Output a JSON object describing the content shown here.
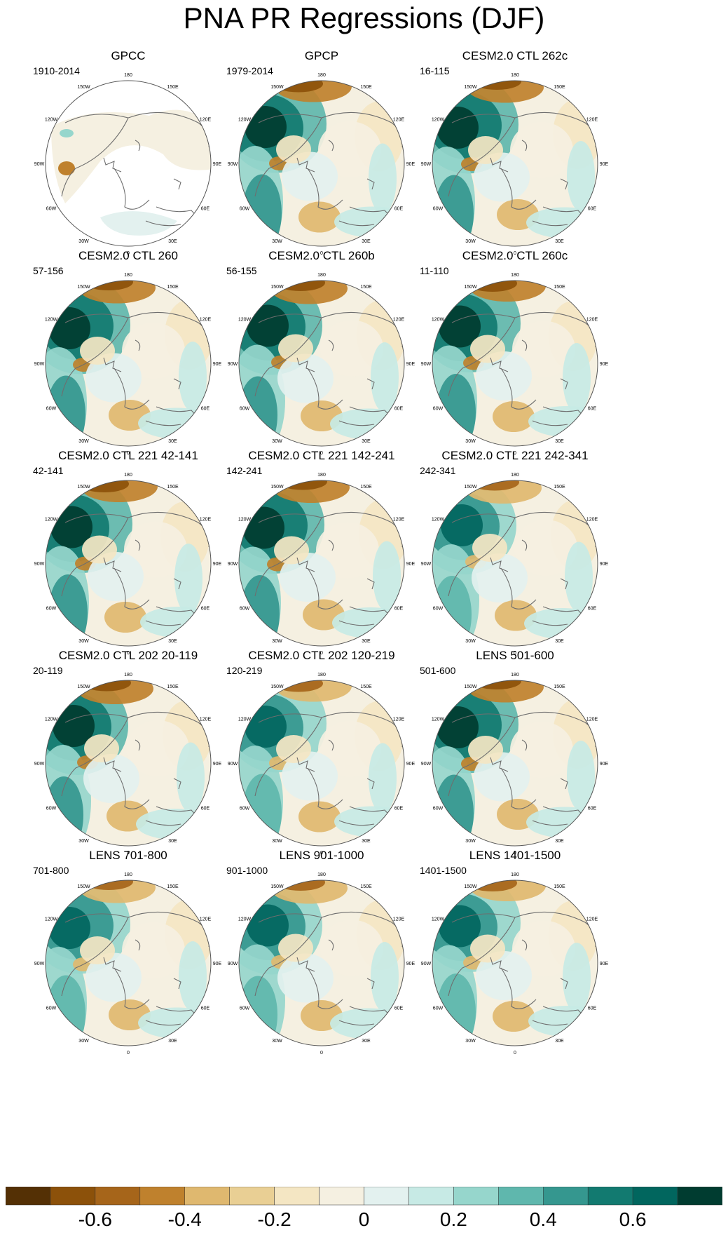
{
  "title": "PNA PR Regressions (DJF)",
  "colors": {
    "land_outline": "#6e6e6e",
    "circle_outline": "#555555",
    "missing": "#ffffff"
  },
  "lon_labels": [
    "180",
    "150E",
    "120E",
    "90E",
    "60E",
    "30E",
    "0",
    "30W",
    "60W",
    "90W",
    "120W",
    "150W"
  ],
  "panels": [
    {
      "title": "GPCC",
      "years": "1910-2014",
      "pattern": "gpcc"
    },
    {
      "title": "GPCP",
      "years": "1979-2014",
      "pattern": "strong"
    },
    {
      "title": "CESM2.0 CTL 262c",
      "years": "16-115",
      "pattern": "strong"
    },
    {
      "title": "CESM2.0 CTL 260",
      "years": "57-156",
      "pattern": "strong"
    },
    {
      "title": "CESM2.0 CTL 260b",
      "years": "56-155",
      "pattern": "strong"
    },
    {
      "title": "CESM2.0 CTL 260c",
      "years": "11-110",
      "pattern": "strong"
    },
    {
      "title": "CESM2.0 CTL 221 42-141",
      "years": "42-141",
      "pattern": "strong"
    },
    {
      "title": "CESM2.0 CTL 221 142-241",
      "years": "142-241",
      "pattern": "strong"
    },
    {
      "title": "CESM2.0 CTL 221 242-341",
      "years": "242-341",
      "pattern": "medium"
    },
    {
      "title": "CESM2.0 CTL 202 20-119",
      "years": "20-119",
      "pattern": "strong"
    },
    {
      "title": "CESM2.0 CTL 202 120-219",
      "years": "120-219",
      "pattern": "medium"
    },
    {
      "title": "LENS 501-600",
      "years": "501-600",
      "pattern": "strong"
    },
    {
      "title": "LENS 701-800",
      "years": "701-800",
      "pattern": "medium"
    },
    {
      "title": "LENS 901-1000",
      "years": "901-1000",
      "pattern": "medium"
    },
    {
      "title": "LENS 1401-1500",
      "years": "1401-1500",
      "pattern": "medium"
    }
  ],
  "colorbar": {
    "colors": [
      "#543005",
      "#8c510a",
      "#a6651a",
      "#bf812d",
      "#dfb86f",
      "#e9cf94",
      "#f4e6c3",
      "#f5f0e1",
      "#e3f1ef",
      "#c7eae5",
      "#96d6cc",
      "#5fb7ad",
      "#35978f",
      "#127a70",
      "#01665e",
      "#003c30"
    ],
    "tick_labels": [
      "-0.6",
      "-0.4",
      "-0.2",
      "0",
      "0.2",
      "0.4",
      "0.6"
    ]
  }
}
